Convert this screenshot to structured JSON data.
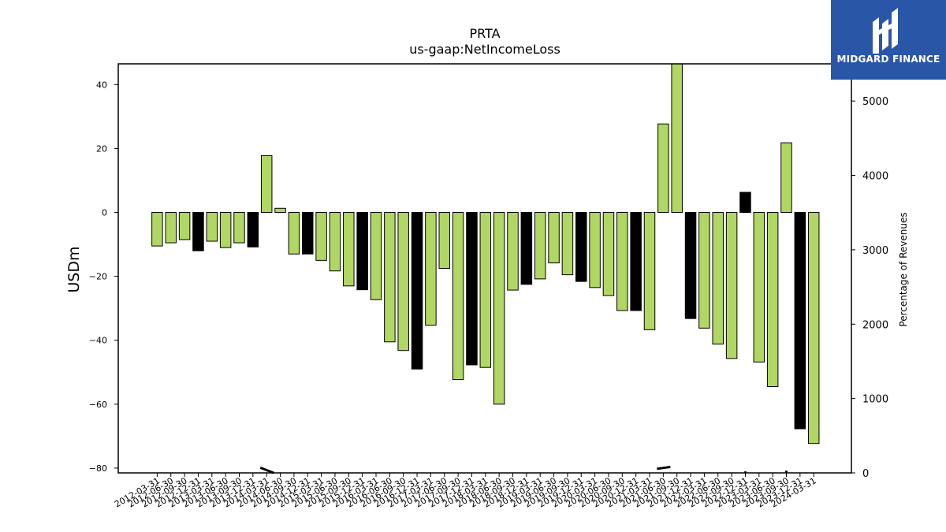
{
  "logo": {
    "text": "MIDGARD FINANCE",
    "background": "#2a56a8"
  },
  "chart_data": {
    "type": "bar",
    "title": "PRTA",
    "subtitle": "us-gaap:NetIncomeLoss",
    "ylabel": "USDm",
    "y2label": "Percentage of Revenues",
    "ylim": [
      -81.5,
      46.5
    ],
    "y2lim": [
      0,
      5500
    ],
    "yticks": [
      40,
      20,
      0,
      -20,
      -40,
      -60,
      -80
    ],
    "y2ticks": [
      5000,
      4000,
      3000,
      2000,
      1000,
      0
    ],
    "colors": {
      "positive_quarter": "#b0d763",
      "q4_highlight": "#000000"
    },
    "categories": [
      "2012-03-31",
      "2012-06-30",
      "2012-09-30",
      "2012-12-31",
      "2013-03-31",
      "2013-06-30",
      "2013-09-30",
      "2013-12-31",
      "2014-03-31",
      "2014-06-30",
      "2014-09-30",
      "2014-12-31",
      "2015-03-31",
      "2015-06-30",
      "2015-09-30",
      "2015-12-31",
      "2016-03-31",
      "2016-06-30",
      "2016-09-30",
      "2016-12-31",
      "2017-03-31",
      "2017-06-30",
      "2017-09-30",
      "2017-12-31",
      "2018-03-31",
      "2018-06-30",
      "2018-09-30",
      "2018-12-31",
      "2019-03-31",
      "2019-06-30",
      "2019-09-30",
      "2019-12-31",
      "2020-03-31",
      "2020-06-30",
      "2020-09-30",
      "2020-12-31",
      "2021-03-31",
      "2021-06-30",
      "2021-09-30",
      "2021-12-31",
      "2022-03-31",
      "2022-06-30",
      "2022-09-30",
      "2022-12-31",
      "2023-03-31",
      "2023-06-30",
      "2023-09-30",
      "2023-12-31",
      "2024-03-31"
    ],
    "values": [
      -10.5,
      -9.5,
      -8.5,
      -12,
      -9,
      -11,
      -9.5,
      -10.8,
      17.8,
      1.3,
      -13,
      -13,
      -15,
      -18.3,
      -23,
      -24.2,
      -27.3,
      -40.5,
      -43.2,
      -49,
      -35.3,
      -17.5,
      -52.3,
      -47.7,
      -48.5,
      -60,
      -24.3,
      -22.5,
      -20.8,
      -15.8,
      -19.5,
      -21.6,
      -23.5,
      -26,
      -30.7,
      -30.7,
      -36.7,
      27.7,
      48,
      -33.2,
      -36.2,
      -41.2,
      -45.7,
      6.3,
      -46.8,
      -54.5,
      21.8,
      -67.7,
      -72.3
    ],
    "highlight_q4": [
      false,
      false,
      false,
      true,
      false,
      false,
      false,
      true,
      false,
      false,
      false,
      true,
      false,
      false,
      false,
      true,
      false,
      false,
      false,
      true,
      false,
      false,
      false,
      true,
      false,
      false,
      false,
      true,
      false,
      false,
      false,
      true,
      false,
      false,
      false,
      true,
      false,
      false,
      false,
      true,
      false,
      false,
      false,
      true,
      false,
      false,
      false,
      true,
      false
    ],
    "revenue_pct_series": [
      {
        "x": "2014-03-31",
        "values": [
          70,
          0
        ]
      },
      {
        "x": "2021-06-30",
        "values": [
          55,
          80
        ]
      },
      {
        "x": "2022-12-31",
        "value": 20
      },
      {
        "x": "2023-09-30",
        "value": 30
      }
    ]
  }
}
